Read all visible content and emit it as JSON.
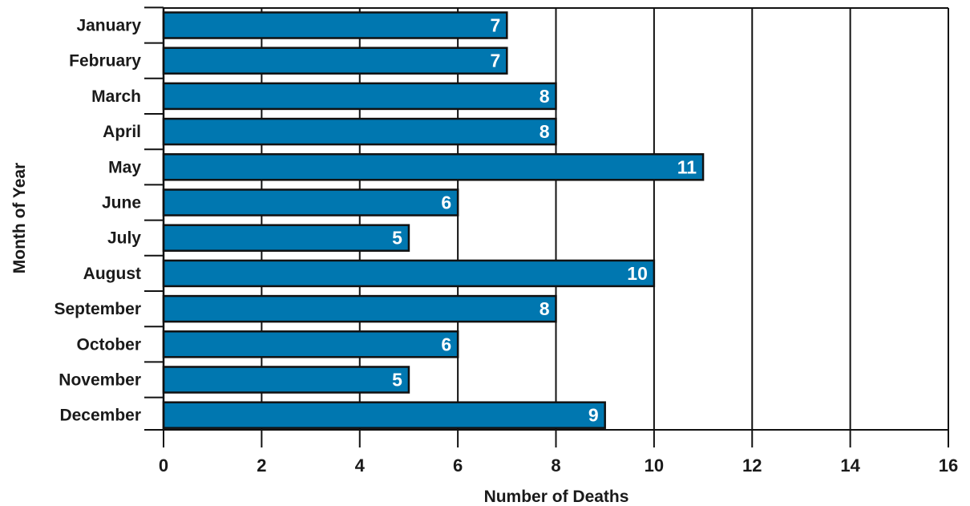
{
  "chart_data": {
    "type": "bar",
    "orientation": "horizontal",
    "categories": [
      "January",
      "February",
      "March",
      "April",
      "May",
      "June",
      "July",
      "August",
      "September",
      "October",
      "November",
      "December"
    ],
    "values": [
      7,
      7,
      8,
      8,
      11,
      6,
      5,
      10,
      8,
      6,
      5,
      9
    ],
    "data_labels": [
      "7",
      "7",
      "8",
      "8",
      "11",
      "6",
      "5",
      "10",
      "8",
      "6",
      "5",
      "9"
    ],
    "xlabel": "Number of Deaths",
    "ylabel": "Month of Year",
    "xlim": [
      0,
      16
    ],
    "xticks": [
      "0",
      "2",
      "4",
      "6",
      "8",
      "10",
      "12",
      "14",
      "16"
    ],
    "grid": "vertical",
    "legend": "none",
    "colors": {
      "bar": "#0077b0",
      "bar_stroke": "#111111",
      "grid": "#111111",
      "text": "#1a1a1a",
      "data_label": "#ffffff"
    }
  }
}
